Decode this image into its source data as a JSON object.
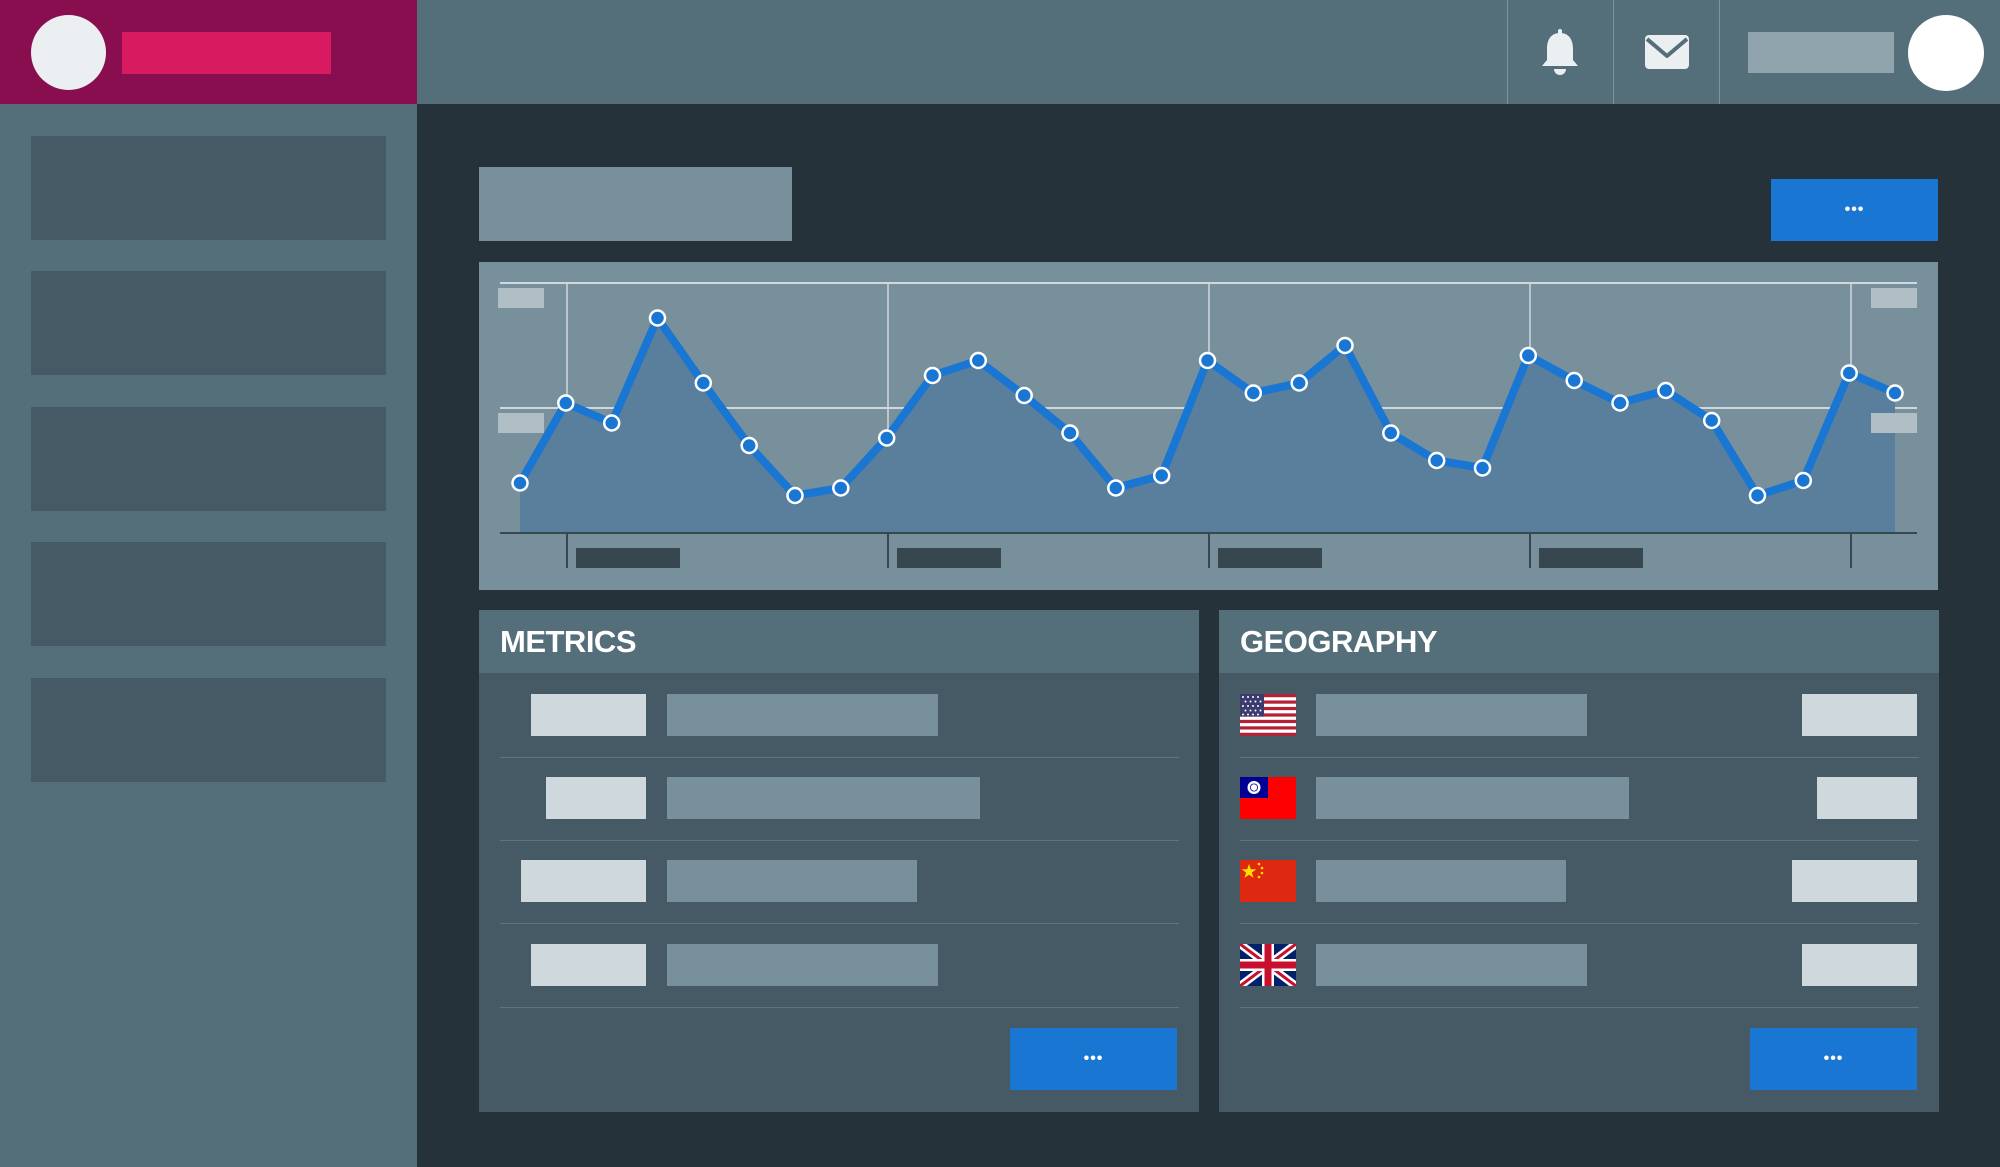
{
  "panels": {
    "metrics": {
      "title": "METRICS",
      "more_label": "•••"
    },
    "geography": {
      "title": "GEOGRAPHY",
      "more_label": "•••",
      "flags": [
        "us-flag",
        "taiwan-flag",
        "china-flag",
        "uk-flag"
      ]
    }
  },
  "header": {
    "more_label": "•••"
  },
  "topbar": {
    "icons": [
      "bell-icon",
      "mail-icon"
    ]
  },
  "colors": {
    "accent": "#1976d2",
    "brand": "#880e4f",
    "brand_accent": "#d81b60",
    "sidebar": "#546e7a",
    "background": "#26323a"
  },
  "chart_data": {
    "type": "area",
    "values": [
      0.2,
      0.52,
      0.44,
      0.86,
      0.6,
      0.35,
      0.15,
      0.18,
      0.38,
      0.63,
      0.69,
      0.55,
      0.4,
      0.18,
      0.23,
      0.69,
      0.56,
      0.6,
      0.75,
      0.4,
      0.29,
      0.26,
      0.71,
      0.61,
      0.52,
      0.57,
      0.45,
      0.15,
      0.21,
      0.64,
      0.56
    ],
    "grid": true
  }
}
